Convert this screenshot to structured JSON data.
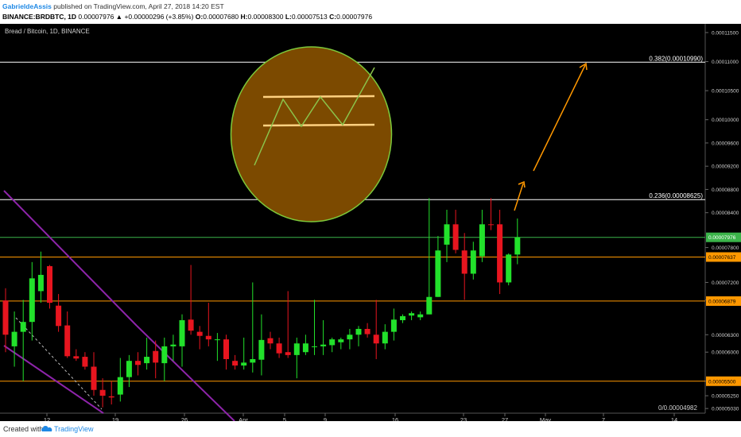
{
  "header": {
    "user": "GabrieldeAssis",
    "published": "published on TradingView.com, April 27, 2018 14:20 EST",
    "symbol": "BINANCE:BRDBTC, 1D",
    "change": "0.00007976 ▲ +0.00000296 (+3.85%)",
    "o_label": "O:",
    "o_value": "0.00007680",
    "h_label": "H:",
    "h_value": "0.00008300",
    "l_label": "L:",
    "l_value": "0.00007513",
    "c_label": "C:",
    "c_value": "0.00007976"
  },
  "footer": {
    "created_with": "Created with",
    "brand": "TradingView"
  },
  "chart_data": {
    "type": "candlestick",
    "title": "Bread / Bitcoin, 1D, BINANCE",
    "ylim": [
      4.95e-05,
      0.0001165
    ],
    "y_ticks": [
      "0.00011500",
      "0.00011000",
      "0.00010500",
      "0.00010000",
      "0.00009600",
      "0.00009200",
      "0.00008800",
      "0.00008400",
      "0.00007800",
      "0.00007200",
      "0.00006900",
      "0.00006300",
      "0.00006000",
      "0.00005500",
      "0.00005250",
      "0.00005030"
    ],
    "x_ticks": [
      "12",
      "19",
      "26",
      "Apr",
      "5",
      "9",
      "16",
      "23",
      "27",
      "May",
      "7",
      "14"
    ],
    "candles": [
      {
        "o": 6890,
        "h": 7100,
        "l": 6000,
        "c": 6300
      },
      {
        "o": 6100,
        "h": 6700,
        "l": 5750,
        "c": 6350
      },
      {
        "o": 6350,
        "h": 6900,
        "l": 5500,
        "c": 6520
      },
      {
        "o": 6520,
        "h": 7550,
        "l": 6200,
        "c": 7270
      },
      {
        "o": 7050,
        "h": 7730,
        "l": 6850,
        "c": 7330
      },
      {
        "o": 7480,
        "h": 7500,
        "l": 6750,
        "c": 6850
      },
      {
        "o": 6800,
        "h": 7000,
        "l": 6350,
        "c": 6450
      },
      {
        "o": 6460,
        "h": 6700,
        "l": 5900,
        "c": 5930
      },
      {
        "o": 5930,
        "h": 6050,
        "l": 5850,
        "c": 5890
      },
      {
        "o": 5920,
        "h": 6000,
        "l": 5700,
        "c": 5750
      },
      {
        "o": 5750,
        "h": 6000,
        "l": 5250,
        "c": 5350
      },
      {
        "o": 5350,
        "h": 5550,
        "l": 5050,
        "c": 5250
      },
      {
        "o": 5240,
        "h": 5500,
        "l": 5100,
        "c": 5220
      },
      {
        "o": 5270,
        "h": 5900,
        "l": 5150,
        "c": 5570
      },
      {
        "o": 5570,
        "h": 5950,
        "l": 5400,
        "c": 5850
      },
      {
        "o": 5850,
        "h": 6000,
        "l": 5600,
        "c": 5780
      },
      {
        "o": 5810,
        "h": 6250,
        "l": 5700,
        "c": 5920
      },
      {
        "o": 6020,
        "h": 6200,
        "l": 5550,
        "c": 5820
      },
      {
        "o": 5810,
        "h": 6250,
        "l": 5500,
        "c": 6100
      },
      {
        "o": 6100,
        "h": 6300,
        "l": 5850,
        "c": 6130
      },
      {
        "o": 6100,
        "h": 6650,
        "l": 5750,
        "c": 6550
      },
      {
        "o": 6560,
        "h": 7500,
        "l": 6300,
        "c": 6370
      },
      {
        "o": 6350,
        "h": 6450,
        "l": 6050,
        "c": 6280
      },
      {
        "o": 6280,
        "h": 6850,
        "l": 6100,
        "c": 6220
      },
      {
        "o": 6220,
        "h": 6330,
        "l": 5850,
        "c": 6220
      },
      {
        "o": 6220,
        "h": 6300,
        "l": 5700,
        "c": 5880
      },
      {
        "o": 5850,
        "h": 5950,
        "l": 5700,
        "c": 5770
      },
      {
        "o": 5770,
        "h": 6250,
        "l": 5700,
        "c": 5820
      },
      {
        "o": 5820,
        "h": 7200,
        "l": 5650,
        "c": 5880
      },
      {
        "o": 5870,
        "h": 6650,
        "l": 5600,
        "c": 6210
      },
      {
        "o": 6240,
        "h": 6350,
        "l": 6050,
        "c": 6150
      },
      {
        "o": 6150,
        "h": 6250,
        "l": 5900,
        "c": 5980
      },
      {
        "o": 6000,
        "h": 7050,
        "l": 5900,
        "c": 5950
      },
      {
        "o": 5950,
        "h": 6250,
        "l": 5550,
        "c": 6150
      },
      {
        "o": 6000,
        "h": 6300,
        "l": 5950,
        "c": 6150
      },
      {
        "o": 6100,
        "h": 6900,
        "l": 5950,
        "c": 6100
      },
      {
        "o": 6100,
        "h": 6550,
        "l": 5950,
        "c": 6130
      },
      {
        "o": 6120,
        "h": 6250,
        "l": 6000,
        "c": 6220
      },
      {
        "o": 6170,
        "h": 6250,
        "l": 6050,
        "c": 6220
      },
      {
        "o": 6220,
        "h": 6400,
        "l": 6050,
        "c": 6300
      },
      {
        "o": 6300,
        "h": 6450,
        "l": 6100,
        "c": 6400
      },
      {
        "o": 6400,
        "h": 6500,
        "l": 6250,
        "c": 6310
      },
      {
        "o": 6300,
        "h": 6900,
        "l": 5880,
        "c": 6150
      },
      {
        "o": 6150,
        "h": 6480,
        "l": 6050,
        "c": 6350
      },
      {
        "o": 6350,
        "h": 6750,
        "l": 6200,
        "c": 6560
      },
      {
        "o": 6550,
        "h": 6650,
        "l": 6500,
        "c": 6620
      },
      {
        "o": 6630,
        "h": 6700,
        "l": 6550,
        "c": 6670
      },
      {
        "o": 6600,
        "h": 6700,
        "l": 6550,
        "c": 6650
      },
      {
        "o": 6650,
        "h": 8650,
        "l": 6650,
        "c": 6950
      },
      {
        "o": 6950,
        "h": 8000,
        "l": 6950,
        "c": 7750
      },
      {
        "o": 7850,
        "h": 8450,
        "l": 7550,
        "c": 8200
      },
      {
        "o": 8200,
        "h": 8450,
        "l": 7700,
        "c": 7760
      },
      {
        "o": 7750,
        "h": 8050,
        "l": 6900,
        "c": 7350
      },
      {
        "o": 7350,
        "h": 7900,
        "l": 7250,
        "c": 7750
      },
      {
        "o": 7650,
        "h": 8450,
        "l": 7550,
        "c": 8200
      },
      {
        "o": 8200,
        "h": 8650,
        "l": 8100,
        "c": 8190
      },
      {
        "o": 8200,
        "h": 8450,
        "l": 7000,
        "c": 7200
      },
      {
        "o": 7200,
        "h": 7700,
        "l": 7150,
        "c": 7680
      },
      {
        "o": 7680,
        "h": 8300,
        "l": 7513,
        "c": 7976
      }
    ],
    "horizontal_levels": [
      {
        "label": "0.382(0.00010990)",
        "value": 0.0001099,
        "color": "#ffffff"
      },
      {
        "label": "0.236(0.00008625)",
        "value": 8.625e-05,
        "color": "#ffffff"
      },
      {
        "label": "0.00007976",
        "value": 7.976e-05,
        "color": "#3bb44a"
      },
      {
        "label": "0.00007637",
        "value": 7.637e-05,
        "color": "#ff9800"
      },
      {
        "label": "0.00006879",
        "value": 6.879e-05,
        "color": "#ff9800"
      },
      {
        "label": "0.00005500",
        "value": 5.5e-05,
        "color": "#ff9800"
      }
    ],
    "bottom_label": "0/0.00004982",
    "colors": {
      "up": "#22e12b",
      "down": "#e8151f",
      "fib": "#ffffff",
      "support": "#ff9800",
      "channel": "#8e24aa",
      "arrow": "#ff9800"
    }
  }
}
